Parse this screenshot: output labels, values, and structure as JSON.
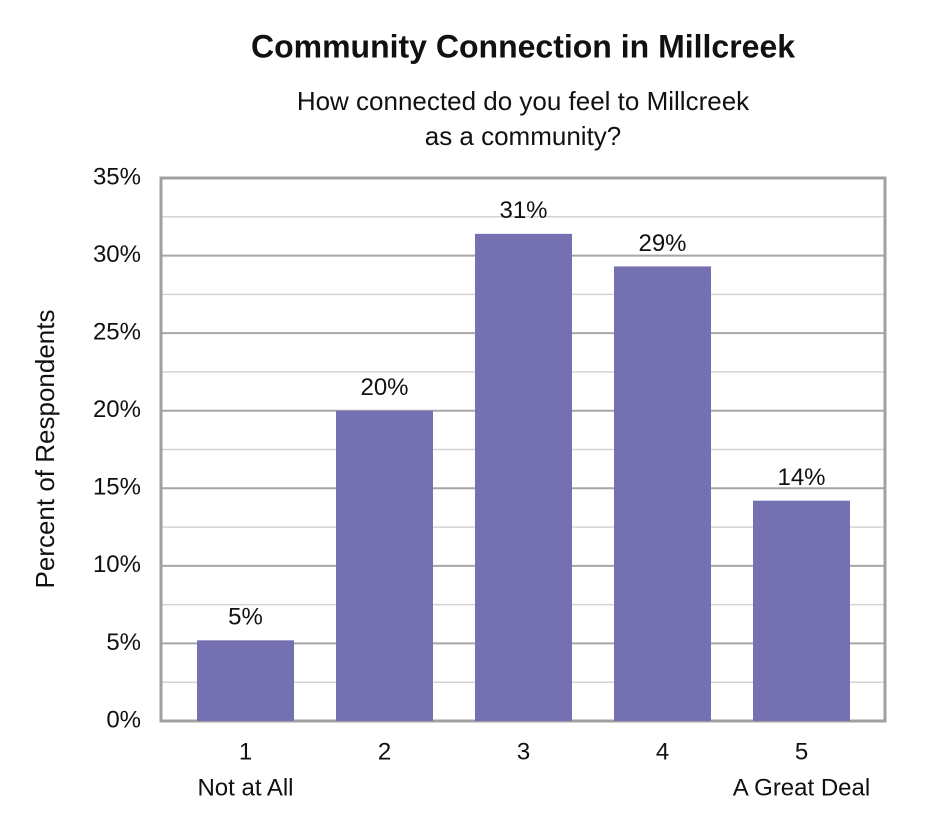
{
  "chart_data": {
    "type": "bar",
    "title": "Community Connection in Millcreek",
    "subtitle": [
      "How connected do you feel to Millcreek",
      "as a community?"
    ],
    "y_label": "Percent of Respondents",
    "categories": [
      "1",
      "2",
      "3",
      "4",
      "5"
    ],
    "category_sublabels": [
      "Not at All",
      null,
      null,
      null,
      "A Great Deal"
    ],
    "values": [
      5.2,
      20,
      31.4,
      29.3,
      14.2
    ],
    "value_labels": [
      "5%",
      "20%",
      "31%",
      "29%",
      "14%"
    ],
    "color": "#7470b2",
    "ylim": [
      0,
      35
    ],
    "yticks": [
      {
        "value": 0,
        "label": "0%"
      },
      {
        "value": 5,
        "label": "5%"
      },
      {
        "value": 10,
        "label": "10%"
      },
      {
        "value": 15,
        "label": "15%"
      },
      {
        "value": 20,
        "label": "20%"
      },
      {
        "value": 25,
        "label": "25%"
      },
      {
        "value": 30,
        "label": "30%"
      },
      {
        "value": 35,
        "label": "35%"
      }
    ],
    "minor_yticks": [
      2.5,
      7.5,
      12.5,
      17.5,
      22.5,
      27.5,
      32.5
    ],
    "grid": true
  }
}
